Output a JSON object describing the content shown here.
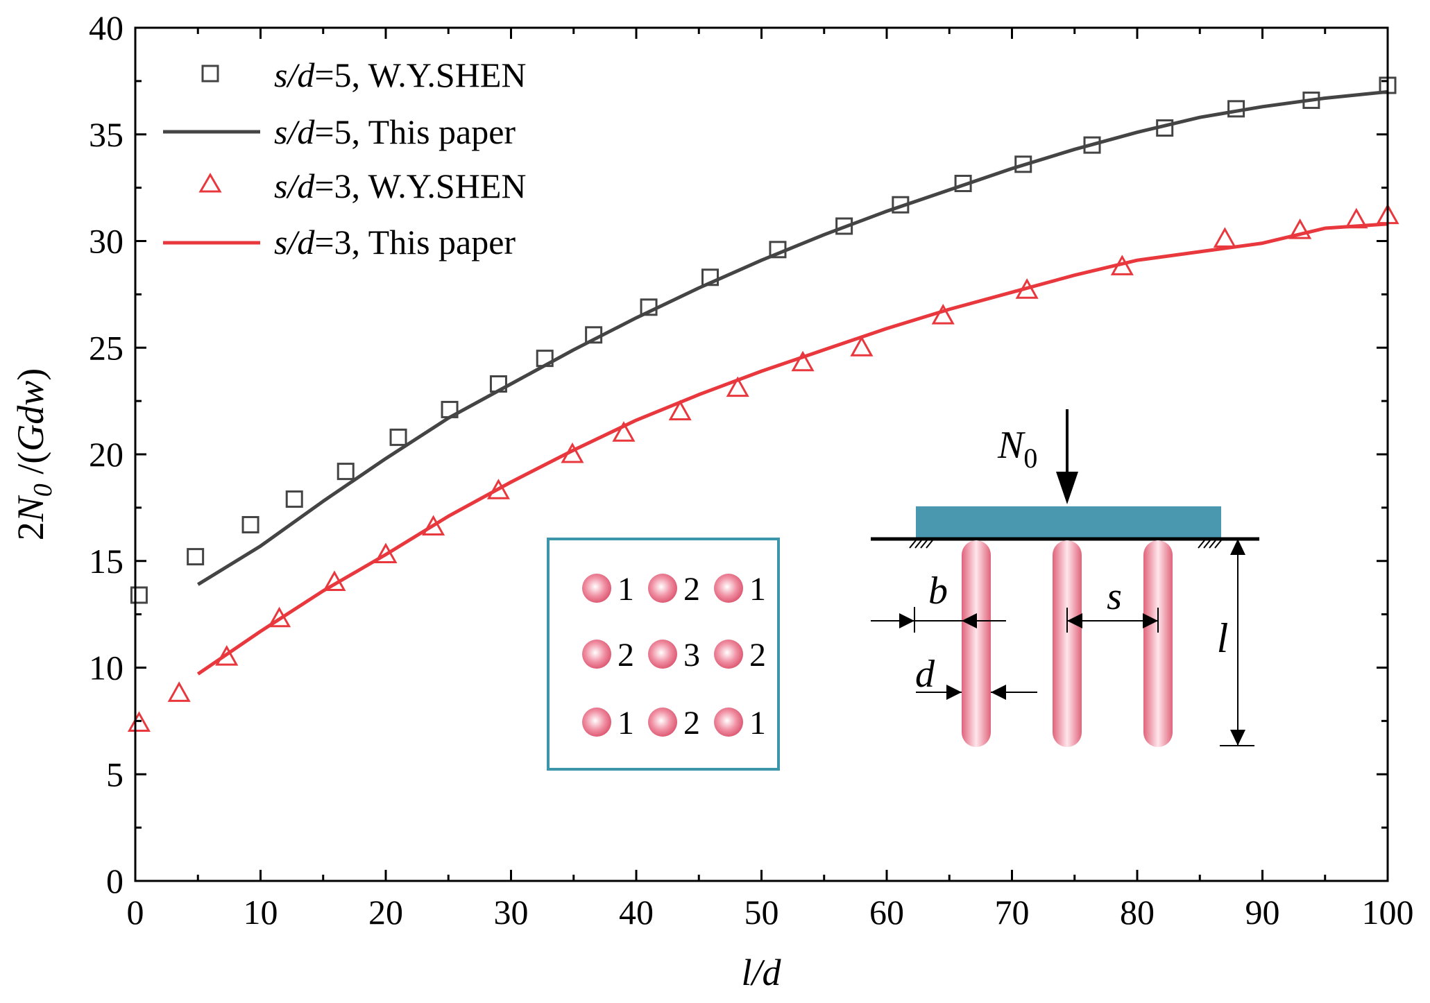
{
  "chart_data": {
    "type": "line",
    "xlabel": "l/d",
    "ylabel_parts": [
      "2",
      "N",
      "0",
      " /(",
      "Gdw",
      ")"
    ],
    "xlim": [
      0,
      100
    ],
    "ylim": [
      0,
      40
    ],
    "x_ticks": [
      "0",
      "10",
      "20",
      "30",
      "40",
      "50",
      "60",
      "70",
      "80",
      "90",
      "100"
    ],
    "y_ticks": [
      "0",
      "5",
      "10",
      "15",
      "20",
      "25",
      "30",
      "35",
      "40"
    ],
    "legend_position": "top-left",
    "series": [
      {
        "key": "s5_shen",
        "prefix": "s/d",
        "suffix": "=5, W.Y.SHEN",
        "kind": "markers",
        "marker": "square",
        "color": "#444444",
        "x": [
          0.3,
          4.8,
          9.2,
          12.7,
          16.8,
          21.0,
          25.1,
          29.0,
          32.7,
          36.6,
          41.0,
          45.9,
          51.3,
          56.6,
          61.1,
          66.1,
          70.9,
          76.4,
          82.2,
          87.9,
          93.9,
          100
        ],
        "y": [
          13.4,
          15.2,
          16.7,
          17.9,
          19.2,
          20.8,
          22.1,
          23.3,
          24.5,
          25.6,
          26.9,
          28.3,
          29.6,
          30.7,
          31.7,
          32.7,
          33.6,
          34.5,
          35.3,
          36.2,
          36.6,
          37.3
        ]
      },
      {
        "key": "s5_paper",
        "prefix": "s/d",
        "suffix": "=5, This paper",
        "kind": "line",
        "color": "#444444",
        "x": [
          5,
          10,
          15,
          20,
          25,
          30,
          35,
          40,
          45,
          50,
          55,
          60,
          65,
          70,
          75,
          80,
          85,
          90,
          95,
          100
        ],
        "y": [
          13.9,
          15.7,
          17.8,
          19.8,
          21.7,
          23.3,
          24.9,
          26.4,
          27.8,
          29.1,
          30.3,
          31.4,
          32.4,
          33.4,
          34.3,
          35.1,
          35.8,
          36.3,
          36.7,
          37.0
        ]
      },
      {
        "key": "s3_shen",
        "prefix": "s/d",
        "suffix": "=3, W.Y.SHEN",
        "kind": "markers",
        "marker": "triangle",
        "color": "#e8383d",
        "x": [
          0.3,
          3.5,
          7.3,
          11.5,
          15.9,
          20.0,
          23.8,
          29.0,
          34.9,
          39.0,
          43.5,
          48.1,
          53.3,
          58.0,
          64.5,
          71.2,
          78.8,
          87.0,
          93.0,
          97.5,
          100
        ],
        "y": [
          7.4,
          8.8,
          10.5,
          12.3,
          14.0,
          15.3,
          16.6,
          18.3,
          20.0,
          21.0,
          22.0,
          23.1,
          24.3,
          25.0,
          26.5,
          27.7,
          28.8,
          30.1,
          30.5,
          31.0,
          31.2
        ]
      },
      {
        "key": "s3_paper",
        "prefix": "s/d",
        "suffix": "=3, This paper",
        "kind": "line",
        "color": "#e8383d",
        "x": [
          5,
          10,
          15,
          20,
          25,
          30,
          35,
          40,
          45,
          50,
          55,
          60,
          65,
          70,
          75,
          80,
          85,
          90,
          95,
          100
        ],
        "y": [
          9.7,
          11.7,
          13.6,
          15.3,
          17.1,
          18.7,
          20.2,
          21.6,
          22.8,
          23.9,
          24.9,
          25.9,
          26.8,
          27.6,
          28.4,
          29.1,
          29.5,
          29.9,
          30.6,
          30.8
        ]
      }
    ],
    "inset_grid": {
      "rows": [
        [
          "1",
          "2",
          "1"
        ],
        [
          "2",
          "3",
          "2"
        ],
        [
          "1",
          "2",
          "1"
        ]
      ]
    },
    "inset_schematic": {
      "load_label": "N",
      "load_sub": "0",
      "labels": {
        "b": "b",
        "s": "s",
        "d": "d",
        "l": "l"
      }
    }
  }
}
